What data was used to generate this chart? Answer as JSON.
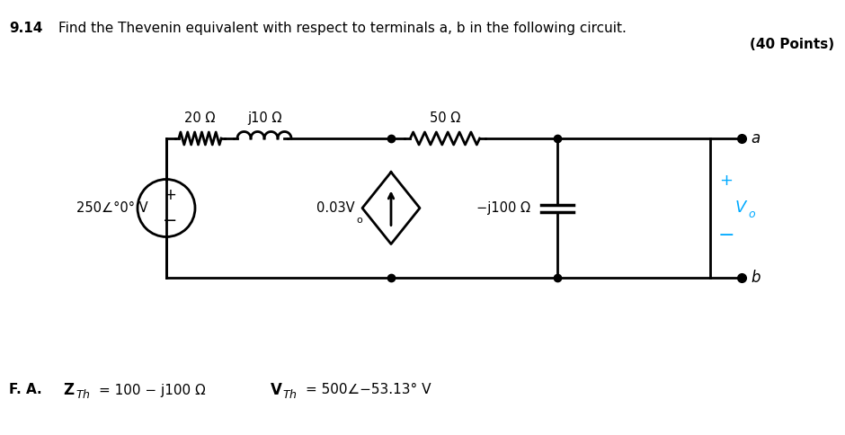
{
  "title_num": "9.14",
  "title_text": "Find the Thevenin equivalent with respect to terminals a, b in the following circuit.",
  "title_points": "(40 Points)",
  "background_color": "#ffffff",
  "answer_label": "F. A.",
  "answer_zth": "Z",
  "answer_zth_sub": "Th",
  "answer_zth_val": " = 100 − j100 Ω",
  "answer_vth": "V",
  "answer_vth_sub": "Th",
  "answer_vth_val": " = 500∠−53.13° V",
  "comp_20R": "20 Ω",
  "comp_j10": "j10 Ω",
  "comp_50R": "50 Ω",
  "comp_src": "250∠°0° V",
  "comp_ccs": "0.03V",
  "comp_ccs_sub": "o",
  "comp_j100": "−j100 Ω",
  "comp_Vo": "V",
  "comp_Vo_sub": "o",
  "cyan_color": "#00aaff",
  "black_color": "#000000",
  "line_width": 2.0
}
